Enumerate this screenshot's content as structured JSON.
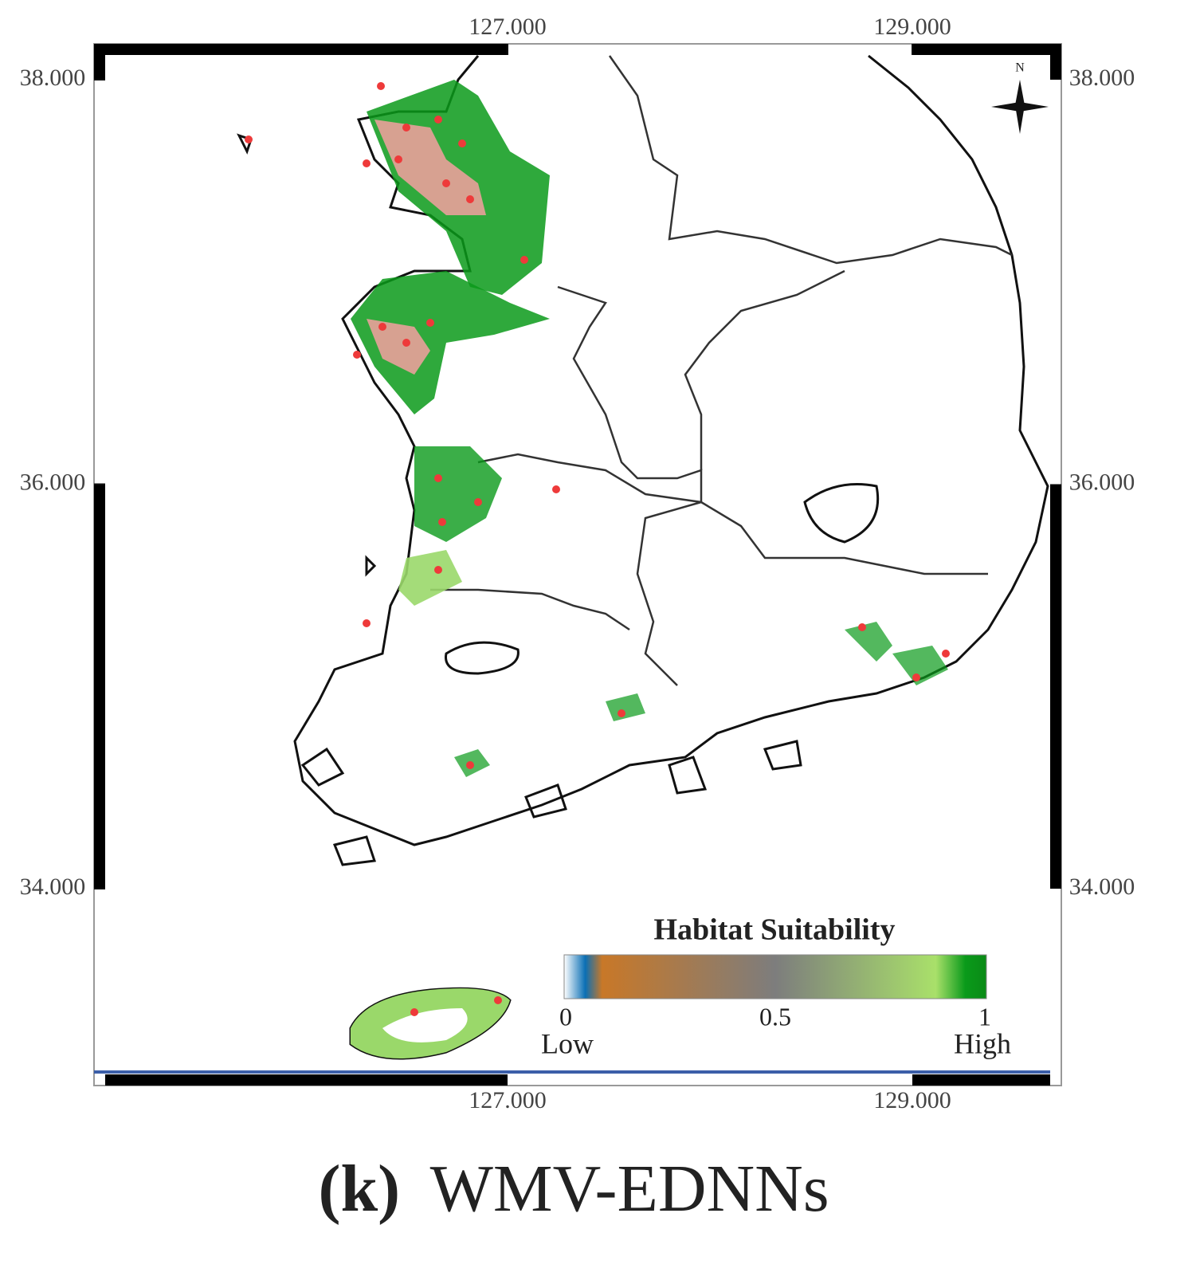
{
  "map": {
    "lon_ticks": [
      {
        "value": 127,
        "label": "127.000"
      },
      {
        "value": 129,
        "label": "129.000"
      }
    ],
    "lat_ticks": [
      {
        "value": 38,
        "label": "38.000"
      },
      {
        "value": 36,
        "label": "36.000"
      },
      {
        "value": 34,
        "label": "34.000"
      }
    ],
    "north_label": "N",
    "legend": {
      "title": "Habitat Suitability",
      "ticks": [
        0,
        0.5,
        1
      ],
      "low_label": "Low",
      "high_label": "High"
    },
    "caption": {
      "label": "(k)",
      "text": "WMV-EDNNs"
    }
  }
}
